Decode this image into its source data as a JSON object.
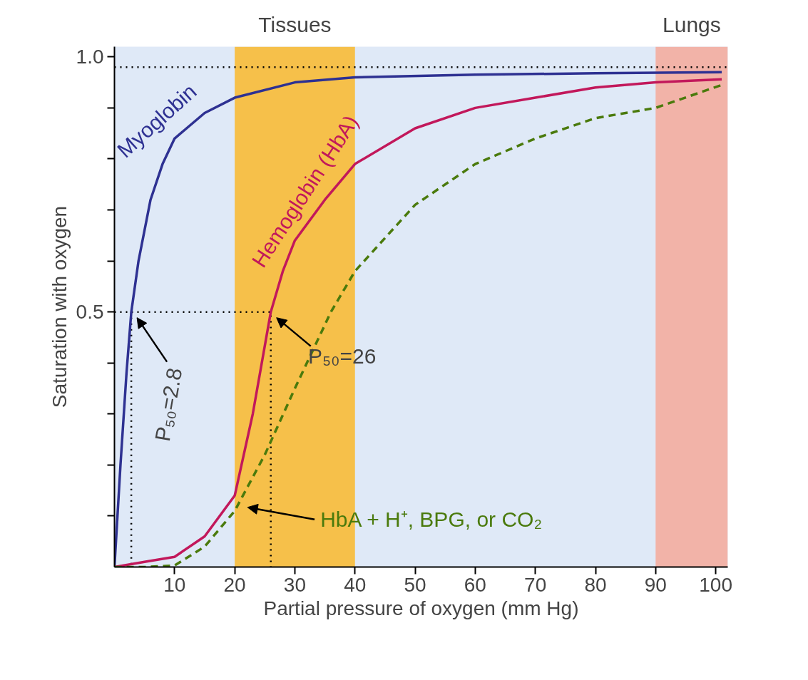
{
  "chart_data": {
    "type": "line",
    "xlabel": "Partial pressure of oxygen (mm Hg)",
    "ylabel": "Saturation with oxygen",
    "xlim": [
      0,
      102
    ],
    "ylim": [
      0,
      1.02
    ],
    "xticks": [
      10,
      20,
      30,
      40,
      50,
      60,
      70,
      80,
      90,
      100
    ],
    "yticks": [
      {
        "value": 0.1,
        "label": null
      },
      {
        "value": 0.2,
        "label": null
      },
      {
        "value": 0.3,
        "label": null
      },
      {
        "value": 0.4,
        "label": null
      },
      {
        "value": 0.5,
        "label": "0.5"
      },
      {
        "value": 0.6,
        "label": null
      },
      {
        "value": 0.7,
        "label": null
      },
      {
        "value": 0.8,
        "label": null
      },
      {
        "value": 0.9,
        "label": null
      },
      {
        "value": 1.0,
        "label": "1.0"
      }
    ],
    "grid": false,
    "series": [
      {
        "color": "#000000",
        "line_style": "dotted",
        "x": [
          0,
          26,
          26
        ],
        "values": [
          0.5,
          0.5,
          0
        ]
      },
      {
        "color": "#000000",
        "line_style": "dotted",
        "x": [
          2.8,
          2.8
        ],
        "values": [
          0.5,
          0
        ]
      },
      {
        "name": "Myoglobin",
        "color": "#2e3192",
        "line_style": "solid",
        "x": [
          0,
          1,
          2,
          2.8,
          4,
          6,
          8,
          10,
          15,
          20,
          30,
          40,
          60,
          80,
          101
        ],
        "values": [
          0,
          0.2,
          0.38,
          0.5,
          0.6,
          0.72,
          0.79,
          0.84,
          0.89,
          0.92,
          0.95,
          0.96,
          0.965,
          0.968,
          0.97
        ]
      },
      {
        "name": "Hemoglobin (HbA)",
        "color": "#c2185b",
        "line_style": "solid",
        "x": [
          0,
          5,
          10,
          15,
          20,
          23,
          26,
          28,
          30,
          35,
          40,
          50,
          60,
          70,
          80,
          90,
          101
        ],
        "values": [
          0,
          0.01,
          0.02,
          0.06,
          0.14,
          0.3,
          0.5,
          0.58,
          0.64,
          0.72,
          0.79,
          0.86,
          0.9,
          0.92,
          0.94,
          0.95,
          0.956
        ]
      },
      {
        "name": "HbA + H⁺, BPG, or CO₂",
        "color": "#4a7a0c",
        "line_style": "dashed",
        "x": [
          0,
          5,
          10,
          15,
          20,
          25,
          30,
          36,
          40,
          50,
          60,
          70,
          80,
          90,
          101
        ],
        "values": [
          0,
          0,
          0.003,
          0.04,
          0.11,
          0.22,
          0.35,
          0.5,
          0.58,
          0.71,
          0.79,
          0.84,
          0.88,
          0.9,
          0.945
        ]
      }
    ],
    "bands": [
      {
        "axis": "x",
        "from": 20,
        "to": 40,
        "label": "Tissues",
        "color": "#f6c04a"
      },
      {
        "axis": "x",
        "from": 90,
        "to": 102,
        "label": "Lungs",
        "color": "#f2b3a8"
      }
    ],
    "ref_lines": [
      {
        "axis": "y",
        "value": 0.98,
        "line_style": "dotted",
        "color": "#000000"
      }
    ],
    "annotations": [
      {
        "text": "P₅₀=2.8",
        "x": 2.8,
        "y": 0.5
      },
      {
        "text": "P₅₀=26",
        "x": 26,
        "y": 0.5
      }
    ]
  }
}
